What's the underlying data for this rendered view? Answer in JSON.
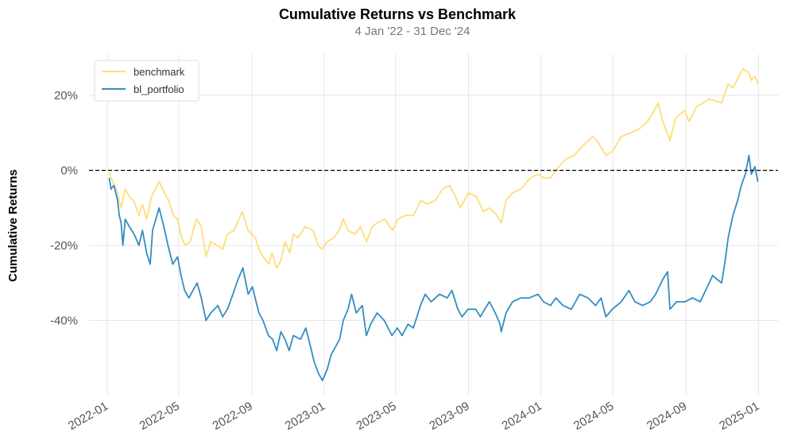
{
  "chart_data": {
    "type": "line",
    "title": "Cumulative Returns vs Benchmark",
    "subtitle": "4 Jan '22 - 31 Dec '24",
    "xlabel": "",
    "ylabel": "Cumulative Returns",
    "xlim": [
      "2021-12-01",
      "2025-02-03"
    ],
    "ylim": [
      -60,
      31
    ],
    "yticks": [
      -40,
      -20,
      0,
      20
    ],
    "ytick_labels": [
      "-40%",
      "-20%",
      "0%",
      "20%"
    ],
    "xticks": [
      "2022-01-01",
      "2022-05-01",
      "2022-09-01",
      "2023-01-01",
      "2023-05-01",
      "2023-09-01",
      "2024-01-01",
      "2024-05-01",
      "2024-09-01",
      "2025-01-01"
    ],
    "xtick_labels": [
      "2022-01",
      "2022-05",
      "2022-09",
      "2023-01",
      "2023-05",
      "2023-09",
      "2024-01",
      "2024-05",
      "2024-09",
      "2025-01"
    ],
    "grid": true,
    "baseline": 0,
    "legend_position": "top-left",
    "series": [
      {
        "name": "benchmark",
        "color": "#fedd78",
        "points": [
          [
            "2022-01-04",
            -0.5
          ],
          [
            "2022-01-10",
            -3
          ],
          [
            "2022-01-18",
            -6
          ],
          [
            "2022-01-24",
            -10
          ],
          [
            "2022-01-31",
            -5
          ],
          [
            "2022-02-07",
            -7
          ],
          [
            "2022-02-14",
            -8
          ],
          [
            "2022-02-23",
            -12
          ],
          [
            "2022-03-01",
            -9
          ],
          [
            "2022-03-08",
            -13
          ],
          [
            "2022-03-16",
            -7
          ],
          [
            "2022-03-29",
            -3
          ],
          [
            "2022-04-07",
            -6
          ],
          [
            "2022-04-14",
            -8
          ],
          [
            "2022-04-22",
            -12
          ],
          [
            "2022-04-29",
            -13
          ],
          [
            "2022-05-06",
            -18
          ],
          [
            "2022-05-12",
            -20
          ],
          [
            "2022-05-20",
            -19
          ],
          [
            "2022-05-31",
            -13
          ],
          [
            "2022-06-08",
            -15
          ],
          [
            "2022-06-13",
            -20
          ],
          [
            "2022-06-16",
            -23
          ],
          [
            "2022-06-24",
            -19
          ],
          [
            "2022-07-05",
            -20
          ],
          [
            "2022-07-14",
            -21
          ],
          [
            "2022-07-22",
            -17
          ],
          [
            "2022-08-02",
            -16
          ],
          [
            "2022-08-16",
            -11
          ],
          [
            "2022-08-26",
            -16
          ],
          [
            "2022-09-07",
            -18
          ],
          [
            "2022-09-13",
            -21
          ],
          [
            "2022-09-20",
            -23
          ],
          [
            "2022-09-30",
            -25
          ],
          [
            "2022-10-05",
            -22
          ],
          [
            "2022-10-13",
            -26
          ],
          [
            "2022-10-20",
            -24
          ],
          [
            "2022-10-27",
            -19
          ],
          [
            "2022-11-04",
            -22
          ],
          [
            "2022-11-10",
            -17
          ],
          [
            "2022-11-18",
            -18
          ],
          [
            "2022-11-30",
            -15
          ],
          [
            "2022-12-13",
            -16
          ],
          [
            "2022-12-22",
            -20
          ],
          [
            "2022-12-28",
            -21
          ],
          [
            "2023-01-06",
            -19
          ],
          [
            "2023-01-17",
            -18
          ],
          [
            "2023-01-26",
            -16
          ],
          [
            "2023-02-02",
            -13
          ],
          [
            "2023-02-10",
            -16
          ],
          [
            "2023-02-22",
            -17
          ],
          [
            "2023-03-03",
            -15
          ],
          [
            "2023-03-13",
            -19
          ],
          [
            "2023-03-23",
            -15
          ],
          [
            "2023-03-31",
            -14
          ],
          [
            "2023-04-13",
            -13
          ],
          [
            "2023-04-26",
            -16
          ],
          [
            "2023-05-05",
            -13
          ],
          [
            "2023-05-18",
            -12
          ],
          [
            "2023-05-31",
            -12
          ],
          [
            "2023-06-13",
            -8
          ],
          [
            "2023-06-23",
            -9
          ],
          [
            "2023-07-07",
            -8
          ],
          [
            "2023-07-19",
            -5
          ],
          [
            "2023-07-31",
            -4
          ],
          [
            "2023-08-10",
            -7
          ],
          [
            "2023-08-18",
            -10
          ],
          [
            "2023-09-01",
            -6
          ],
          [
            "2023-09-14",
            -7
          ],
          [
            "2023-09-26",
            -11
          ],
          [
            "2023-10-06",
            -10
          ],
          [
            "2023-10-19",
            -12
          ],
          [
            "2023-10-26",
            -14
          ],
          [
            "2023-11-03",
            -8
          ],
          [
            "2023-11-14",
            -6
          ],
          [
            "2023-11-28",
            -5
          ],
          [
            "2023-12-14",
            -2
          ],
          [
            "2023-12-28",
            -1
          ],
          [
            "2024-01-05",
            -2
          ],
          [
            "2024-01-17",
            -2
          ],
          [
            "2024-01-31",
            1
          ],
          [
            "2024-02-12",
            3
          ],
          [
            "2024-02-26",
            4
          ],
          [
            "2024-03-08",
            6
          ],
          [
            "2024-03-21",
            8
          ],
          [
            "2024-03-28",
            9
          ],
          [
            "2024-04-04",
            8
          ],
          [
            "2024-04-19",
            4
          ],
          [
            "2024-04-30",
            5
          ],
          [
            "2024-05-15",
            9
          ],
          [
            "2024-05-31",
            10
          ],
          [
            "2024-06-14",
            11
          ],
          [
            "2024-06-28",
            13
          ],
          [
            "2024-07-10",
            16
          ],
          [
            "2024-07-16",
            18
          ],
          [
            "2024-07-24",
            13
          ],
          [
            "2024-08-05",
            8
          ],
          [
            "2024-08-15",
            14
          ],
          [
            "2024-08-30",
            16
          ],
          [
            "2024-09-06",
            13
          ],
          [
            "2024-09-19",
            17
          ],
          [
            "2024-09-30",
            18
          ],
          [
            "2024-10-10",
            19
          ],
          [
            "2024-10-31",
            18
          ],
          [
            "2024-11-11",
            23
          ],
          [
            "2024-11-19",
            22
          ],
          [
            "2024-11-29",
            25
          ],
          [
            "2024-12-06",
            27
          ],
          [
            "2024-12-16",
            26
          ],
          [
            "2024-12-20",
            24
          ],
          [
            "2024-12-26",
            25
          ],
          [
            "2024-12-31",
            23
          ]
        ]
      },
      {
        "name": "bl_portfolio",
        "color": "#348dc1",
        "points": [
          [
            "2022-01-04",
            -2
          ],
          [
            "2022-01-07",
            -5
          ],
          [
            "2022-01-12",
            -4
          ],
          [
            "2022-01-18",
            -8
          ],
          [
            "2022-01-21",
            -12
          ],
          [
            "2022-01-24",
            -14
          ],
          [
            "2022-01-27",
            -20
          ],
          [
            "2022-01-31",
            -13
          ],
          [
            "2022-02-07",
            -15
          ],
          [
            "2022-02-15",
            -17
          ],
          [
            "2022-02-23",
            -20
          ],
          [
            "2022-03-01",
            -16
          ],
          [
            "2022-03-08",
            -22
          ],
          [
            "2022-03-14",
            -25
          ],
          [
            "2022-03-18",
            -16
          ],
          [
            "2022-03-29",
            -10
          ],
          [
            "2022-04-06",
            -15
          ],
          [
            "2022-04-13",
            -20
          ],
          [
            "2022-04-21",
            -25
          ],
          [
            "2022-04-29",
            -23
          ],
          [
            "2022-05-05",
            -28
          ],
          [
            "2022-05-11",
            -32
          ],
          [
            "2022-05-18",
            -34
          ],
          [
            "2022-05-25",
            -32
          ],
          [
            "2022-06-01",
            -30
          ],
          [
            "2022-06-08",
            -34
          ],
          [
            "2022-06-16",
            -40
          ],
          [
            "2022-06-24",
            -38
          ],
          [
            "2022-07-06",
            -36
          ],
          [
            "2022-07-14",
            -39
          ],
          [
            "2022-07-22",
            -37
          ],
          [
            "2022-07-29",
            -34
          ],
          [
            "2022-08-09",
            -29
          ],
          [
            "2022-08-17",
            -26
          ],
          [
            "2022-08-26",
            -33
          ],
          [
            "2022-09-02",
            -31
          ],
          [
            "2022-09-13",
            -38
          ],
          [
            "2022-09-20",
            -40
          ],
          [
            "2022-09-29",
            -44
          ],
          [
            "2022-10-06",
            -45
          ],
          [
            "2022-10-13",
            -48
          ],
          [
            "2022-10-20",
            -43
          ],
          [
            "2022-10-27",
            -45
          ],
          [
            "2022-11-03",
            -48
          ],
          [
            "2022-11-10",
            -44
          ],
          [
            "2022-11-22",
            -45
          ],
          [
            "2022-12-01",
            -42
          ],
          [
            "2022-12-09",
            -47
          ],
          [
            "2022-12-15",
            -51
          ],
          [
            "2022-12-22",
            -54
          ],
          [
            "2022-12-29",
            -56
          ],
          [
            "2023-01-06",
            -53
          ],
          [
            "2023-01-13",
            -49
          ],
          [
            "2023-01-20",
            -47
          ],
          [
            "2023-01-27",
            -45
          ],
          [
            "2023-02-02",
            -40
          ],
          [
            "2023-02-10",
            -37
          ],
          [
            "2023-02-16",
            -33
          ],
          [
            "2023-02-24",
            -38
          ],
          [
            "2023-03-06",
            -36
          ],
          [
            "2023-03-13",
            -44
          ],
          [
            "2023-03-20",
            -41
          ],
          [
            "2023-03-31",
            -38
          ],
          [
            "2023-04-12",
            -40
          ],
          [
            "2023-04-25",
            -44
          ],
          [
            "2023-05-04",
            -42
          ],
          [
            "2023-05-12",
            -44
          ],
          [
            "2023-05-22",
            -41
          ],
          [
            "2023-05-31",
            -42
          ],
          [
            "2023-06-12",
            -36
          ],
          [
            "2023-06-20",
            -33
          ],
          [
            "2023-06-30",
            -35
          ],
          [
            "2023-07-14",
            -33
          ],
          [
            "2023-07-27",
            -34
          ],
          [
            "2023-08-04",
            -32
          ],
          [
            "2023-08-14",
            -37
          ],
          [
            "2023-08-21",
            -39
          ],
          [
            "2023-08-31",
            -37
          ],
          [
            "2023-09-13",
            -37
          ],
          [
            "2023-09-21",
            -39
          ],
          [
            "2023-09-28",
            -37
          ],
          [
            "2023-10-06",
            -35
          ],
          [
            "2023-10-16",
            -38
          ],
          [
            "2023-10-24",
            -41
          ],
          [
            "2023-10-26",
            -43
          ],
          [
            "2023-11-03",
            -38
          ],
          [
            "2023-11-14",
            -35
          ],
          [
            "2023-11-28",
            -34
          ],
          [
            "2023-12-12",
            -34
          ],
          [
            "2023-12-27",
            -33
          ],
          [
            "2024-01-05",
            -35
          ],
          [
            "2024-01-17",
            -36
          ],
          [
            "2024-01-26",
            -34
          ],
          [
            "2024-02-07",
            -36
          ],
          [
            "2024-02-21",
            -37
          ],
          [
            "2024-03-06",
            -33
          ],
          [
            "2024-03-20",
            -34
          ],
          [
            "2024-04-02",
            -36
          ],
          [
            "2024-04-11",
            -34
          ],
          [
            "2024-04-19",
            -39
          ],
          [
            "2024-04-30",
            -37
          ],
          [
            "2024-05-15",
            -35
          ],
          [
            "2024-05-28",
            -32
          ],
          [
            "2024-06-07",
            -35
          ],
          [
            "2024-06-20",
            -36
          ],
          [
            "2024-07-03",
            -35
          ],
          [
            "2024-07-12",
            -33
          ],
          [
            "2024-07-24",
            -29
          ],
          [
            "2024-08-01",
            -27
          ],
          [
            "2024-08-05",
            -37
          ],
          [
            "2024-08-16",
            -35
          ],
          [
            "2024-08-30",
            -35
          ],
          [
            "2024-09-12",
            -34
          ],
          [
            "2024-09-25",
            -35
          ],
          [
            "2024-10-04",
            -32
          ],
          [
            "2024-10-16",
            -28
          ],
          [
            "2024-10-23",
            -29
          ],
          [
            "2024-10-31",
            -30
          ],
          [
            "2024-11-06",
            -24
          ],
          [
            "2024-11-11",
            -18
          ],
          [
            "2024-11-19",
            -12
          ],
          [
            "2024-11-27",
            -8
          ],
          [
            "2024-12-03",
            -4
          ],
          [
            "2024-12-10",
            -1
          ],
          [
            "2024-12-16",
            4
          ],
          [
            "2024-12-20",
            -1
          ],
          [
            "2024-12-26",
            1
          ],
          [
            "2024-12-31",
            -3
          ]
        ]
      }
    ]
  }
}
